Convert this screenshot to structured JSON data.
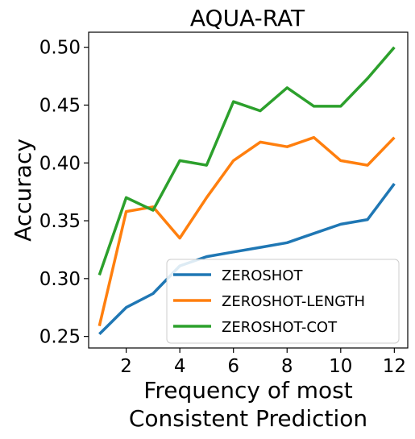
{
  "chart_data": {
    "type": "line",
    "title": "AQUA-RAT",
    "xlabel": [
      "Frequency of most",
      "Consistent Prediction"
    ],
    "ylabel": "Accuracy",
    "x": [
      1,
      2,
      3,
      4,
      5,
      6,
      7,
      8,
      9,
      10,
      11,
      12
    ],
    "xlim": [
      0.6,
      12.5
    ],
    "ylim": [
      0.24,
      0.513
    ],
    "xticks": [
      2,
      4,
      6,
      8,
      10,
      12
    ],
    "yticks": [
      0.25,
      0.3,
      0.35,
      0.4,
      0.45,
      0.5
    ],
    "ytick_labels": [
      "0.25",
      "0.30",
      "0.35",
      "0.40",
      "0.45",
      "0.50"
    ],
    "grid": false,
    "legend_position": "lower-right",
    "series": [
      {
        "name": "ZEROSHOT",
        "color": "#1f77b4",
        "values": [
          0.252,
          0.275,
          0.287,
          0.311,
          0.319,
          0.323,
          0.327,
          0.331,
          0.339,
          0.347,
          0.351,
          0.382
        ]
      },
      {
        "name": "ZEROSHOT-LENGTH",
        "color": "#ff7f0e",
        "values": [
          0.259,
          0.358,
          0.362,
          0.335,
          0.37,
          0.402,
          0.418,
          0.414,
          0.422,
          0.402,
          0.398,
          0.422
        ]
      },
      {
        "name": "ZEROSHOT-COT",
        "color": "#2ca02c",
        "values": [
          0.303,
          0.37,
          0.359,
          0.402,
          0.398,
          0.453,
          0.445,
          0.465,
          0.449,
          0.449,
          0.473,
          0.5
        ]
      }
    ]
  }
}
